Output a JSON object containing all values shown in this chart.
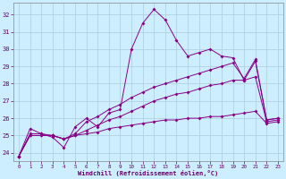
{
  "xlabel": "Windchill (Refroidissement éolien,°C)",
  "background_color": "#cceeff",
  "grid_color": "#aaccdd",
  "line_color": "#880088",
  "xlim": [
    -0.5,
    23.5
  ],
  "ylim": [
    23.5,
    32.7
  ],
  "yticks": [
    24,
    25,
    26,
    27,
    28,
    29,
    30,
    31,
    32
  ],
  "xticks": [
    0,
    1,
    2,
    3,
    4,
    5,
    6,
    7,
    8,
    9,
    10,
    11,
    12,
    13,
    14,
    15,
    16,
    17,
    18,
    19,
    20,
    21,
    22,
    23
  ],
  "series": [
    {
      "x": [
        0,
        1,
        2,
        3,
        4,
        5,
        6,
        7,
        8,
        9,
        10,
        11,
        12,
        13,
        14,
        15,
        16,
        17,
        18,
        19,
        20,
        21,
        22,
        23
      ],
      "y": [
        23.8,
        25.4,
        25.1,
        24.9,
        24.3,
        25.5,
        26.0,
        25.5,
        26.3,
        26.5,
        30.0,
        31.5,
        32.3,
        31.7,
        30.5,
        29.6,
        29.8,
        30.0,
        29.6,
        29.5,
        28.2,
        29.3,
        25.9,
        26.0
      ]
    },
    {
      "x": [
        0,
        1,
        2,
        3,
        4,
        5,
        6,
        7,
        8,
        9,
        10,
        11,
        12,
        13,
        14,
        15,
        16,
        17,
        18,
        19,
        20,
        21,
        22,
        23
      ],
      "y": [
        23.8,
        25.1,
        25.1,
        25.0,
        24.8,
        25.1,
        25.8,
        26.1,
        26.5,
        26.8,
        27.2,
        27.5,
        27.8,
        28.0,
        28.2,
        28.4,
        28.6,
        28.8,
        29.0,
        29.2,
        28.3,
        29.4,
        25.9,
        26.0
      ]
    },
    {
      "x": [
        0,
        1,
        2,
        3,
        4,
        5,
        6,
        7,
        8,
        9,
        10,
        11,
        12,
        13,
        14,
        15,
        16,
        17,
        18,
        19,
        20,
        21,
        22,
        23
      ],
      "y": [
        23.8,
        25.0,
        25.0,
        25.0,
        24.8,
        25.0,
        25.3,
        25.6,
        25.9,
        26.1,
        26.4,
        26.7,
        27.0,
        27.2,
        27.4,
        27.5,
        27.7,
        27.9,
        28.0,
        28.2,
        28.2,
        28.4,
        25.8,
        25.9
      ]
    },
    {
      "x": [
        0,
        1,
        2,
        3,
        4,
        5,
        6,
        7,
        8,
        9,
        10,
        11,
        12,
        13,
        14,
        15,
        16,
        17,
        18,
        19,
        20,
        21,
        22,
        23
      ],
      "y": [
        23.8,
        25.0,
        25.0,
        25.0,
        24.8,
        25.0,
        25.1,
        25.2,
        25.4,
        25.5,
        25.6,
        25.7,
        25.8,
        25.9,
        25.9,
        26.0,
        26.0,
        26.1,
        26.1,
        26.2,
        26.3,
        26.4,
        25.7,
        25.8
      ]
    }
  ]
}
